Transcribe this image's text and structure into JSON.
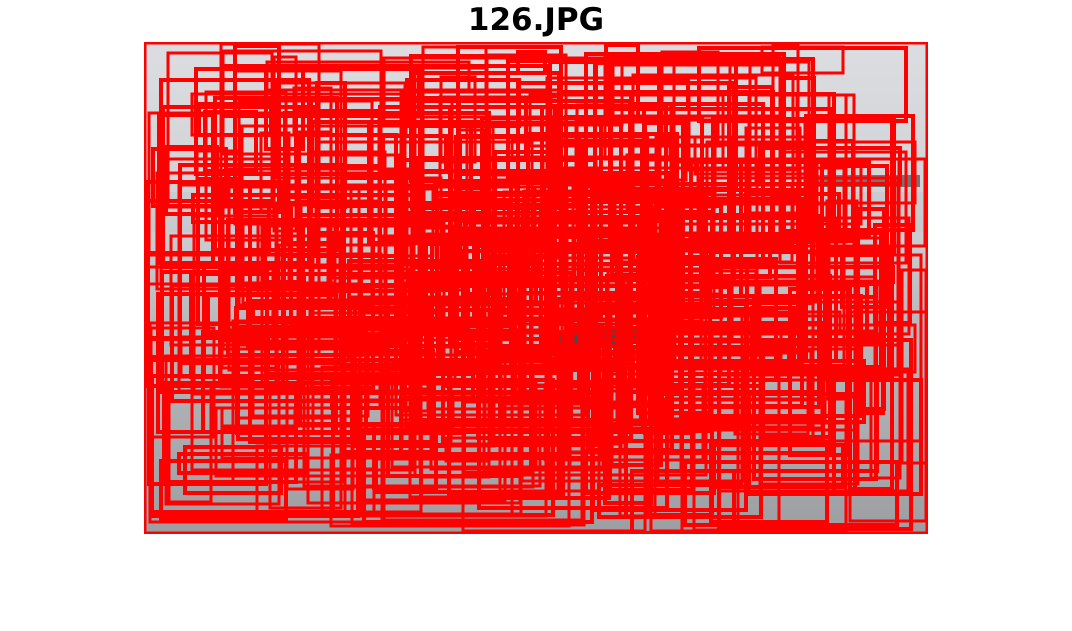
{
  "figure": {
    "title": "126.JPG"
  },
  "image": {
    "description_colors": {
      "sky": "#d6d7db",
      "water": "#aeb0b4",
      "box": "#ff0000"
    }
  }
}
